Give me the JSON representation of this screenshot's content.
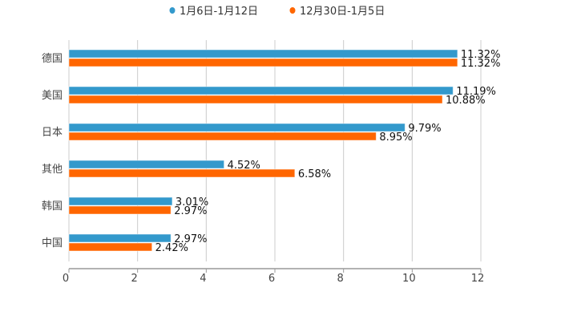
{
  "chart_data": {
    "type": "bar",
    "orientation": "horizontal",
    "categories": [
      "德国",
      "美国",
      "日本",
      "其他",
      "韩国",
      "中国"
    ],
    "series": [
      {
        "name": "1月6日-1月12日",
        "color": "#3399cc",
        "values": [
          11.32,
          11.19,
          9.79,
          4.52,
          3.01,
          2.97
        ],
        "labels": [
          "11.32%",
          "11.19%",
          "9.79%",
          "4.52%",
          "3.01%",
          "2.97%"
        ]
      },
      {
        "name": "12月30日-1月5日",
        "color": "#ff6600",
        "values": [
          11.32,
          10.88,
          8.95,
          6.58,
          2.97,
          2.42
        ],
        "labels": [
          "11.32%",
          "10.88%",
          "8.95%",
          "6.58%",
          "2.97%",
          "2.42%"
        ]
      }
    ],
    "xlim": [
      0,
      12
    ],
    "xticks": [
      0,
      2,
      4,
      6,
      8,
      10,
      12
    ],
    "xtick_labels": [
      "0",
      "2",
      "4",
      "6",
      "8",
      "10",
      "12"
    ],
    "grid": true,
    "legend": "top-center",
    "title": "",
    "xlabel": "",
    "ylabel": ""
  }
}
